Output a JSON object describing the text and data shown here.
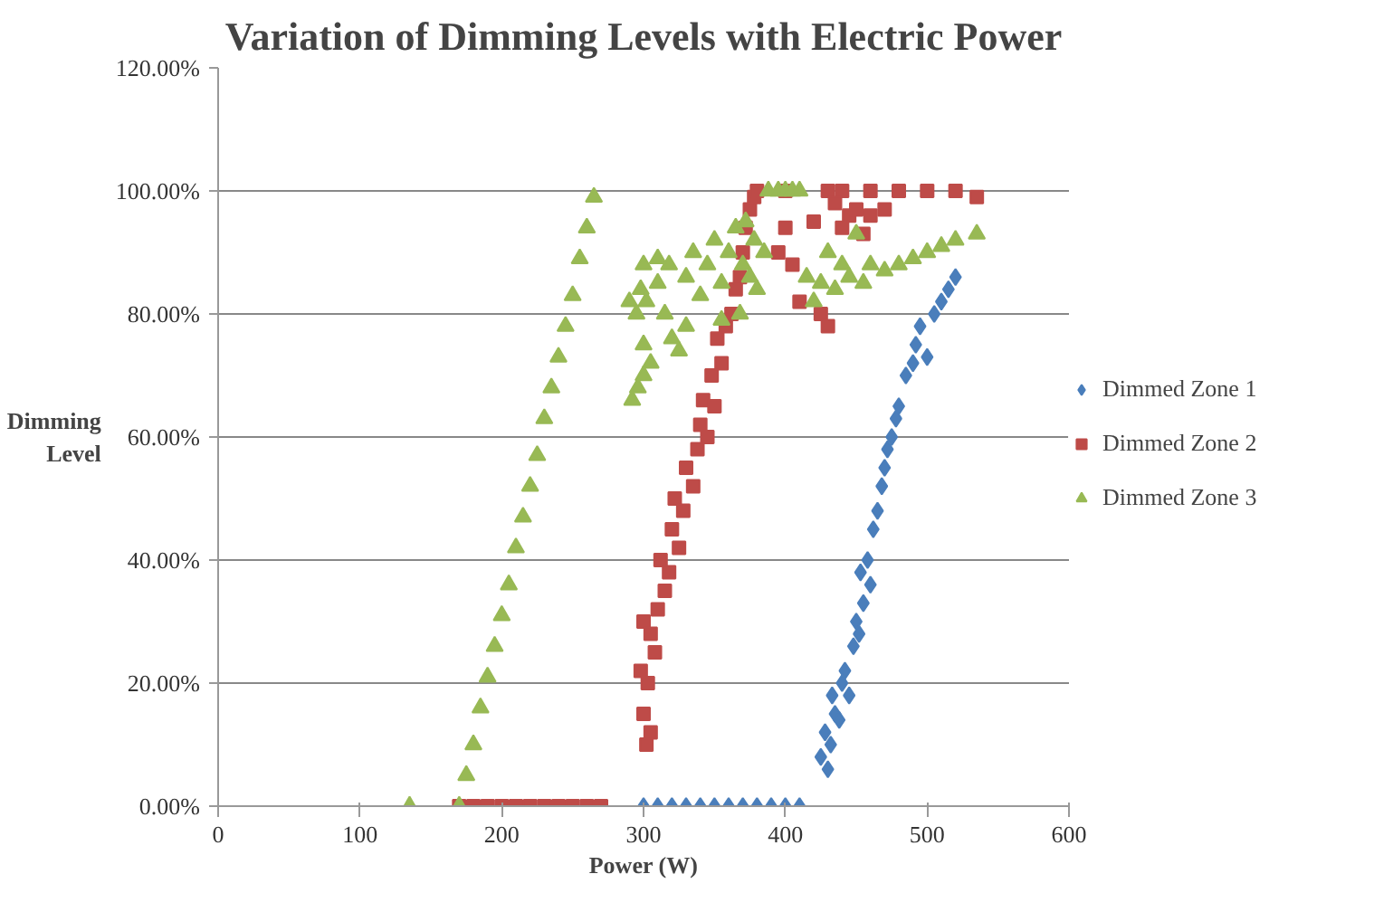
{
  "chart_data": {
    "type": "scatter",
    "title": "Variation of Dimming Levels with Electric Power",
    "xlabel": "Power (W)",
    "ylabel": "Dimming\nLevel",
    "xlim": [
      0,
      600
    ],
    "xticks": [
      0,
      100,
      200,
      300,
      400,
      500,
      600
    ],
    "ylim": [
      0,
      120
    ],
    "yticks": [
      {
        "value": 0,
        "label": "0.00%"
      },
      {
        "value": 20,
        "label": "20.00%"
      },
      {
        "value": 40,
        "label": "40.00%"
      },
      {
        "value": 60,
        "label": "60.00%"
      },
      {
        "value": 80,
        "label": "80.00%"
      },
      {
        "value": 100,
        "label": "100.00%"
      },
      {
        "value": 120,
        "label": "120.00%"
      }
    ],
    "grid": "y",
    "legend": "right",
    "series": [
      {
        "name": "Dimmed Zone 1",
        "color": "#4a7ebb",
        "marker": "diamond",
        "x": [
          300,
          310,
          320,
          330,
          340,
          350,
          360,
          370,
          380,
          390,
          400,
          410,
          425,
          428,
          430,
          432,
          435,
          433,
          438,
          440,
          442,
          445,
          448,
          450,
          452,
          455,
          453,
          458,
          460,
          462,
          465,
          468,
          470,
          472,
          475,
          478,
          480,
          485,
          490,
          492,
          495,
          500,
          505,
          510,
          515,
          520
        ],
        "values": [
          0,
          0,
          0,
          0,
          0,
          0,
          0,
          0,
          0,
          0,
          0,
          0,
          8,
          12,
          6,
          10,
          15,
          18,
          14,
          20,
          22,
          18,
          26,
          30,
          28,
          33,
          38,
          40,
          36,
          45,
          48,
          52,
          55,
          58,
          60,
          63,
          65,
          70,
          72,
          75,
          78,
          73,
          80,
          82,
          84,
          86
        ]
      },
      {
        "name": "Dimmed Zone 2",
        "color": "#be4b48",
        "marker": "square",
        "x": [
          170,
          180,
          190,
          200,
          210,
          220,
          230,
          240,
          250,
          260,
          270,
          298,
          300,
          302,
          305,
          303,
          308,
          300,
          305,
          310,
          315,
          312,
          318,
          320,
          325,
          322,
          328,
          330,
          335,
          338,
          340,
          345,
          342,
          348,
          350,
          355,
          352,
          358,
          362,
          365,
          368,
          370,
          372,
          375,
          378,
          380,
          400,
          430,
          440,
          460,
          480,
          500,
          520,
          535,
          425,
          430,
          420,
          435,
          440,
          445,
          450,
          455,
          460,
          470,
          395,
          405,
          410,
          400
        ],
        "values": [
          0,
          0,
          0,
          0,
          0,
          0,
          0,
          0,
          0,
          0,
          0,
          22,
          15,
          10,
          12,
          20,
          25,
          30,
          28,
          32,
          35,
          40,
          38,
          45,
          42,
          50,
          48,
          55,
          52,
          58,
          62,
          60,
          66,
          70,
          65,
          72,
          76,
          78,
          80,
          84,
          86,
          90,
          94,
          97,
          99,
          100,
          100,
          100,
          100,
          100,
          100,
          100,
          100,
          99,
          80,
          78,
          95,
          98,
          94,
          96,
          97,
          93,
          96,
          97,
          90,
          88,
          82,
          94
        ]
      },
      {
        "name": "Dimmed Zone 3",
        "color": "#98b954",
        "marker": "triangle",
        "x": [
          135,
          170,
          175,
          180,
          185,
          190,
          195,
          200,
          205,
          210,
          215,
          220,
          225,
          230,
          235,
          240,
          245,
          250,
          255,
          260,
          265,
          292,
          296,
          300,
          305,
          300,
          295,
          298,
          302,
          310,
          315,
          320,
          325,
          318,
          330,
          335,
          340,
          345,
          350,
          355,
          360,
          365,
          370,
          368,
          375,
          372,
          380,
          378,
          385,
          388,
          395,
          400,
          405,
          410,
          415,
          420,
          425,
          430,
          435,
          440,
          445,
          450,
          455,
          460,
          470,
          480,
          490,
          500,
          510,
          520,
          535,
          300,
          290,
          310,
          355,
          330
        ],
        "values": [
          0,
          0,
          5,
          10,
          16,
          21,
          26,
          31,
          36,
          42,
          47,
          52,
          57,
          63,
          68,
          73,
          78,
          83,
          89,
          94,
          99,
          66,
          68,
          70,
          72,
          75,
          80,
          84,
          82,
          85,
          80,
          76,
          74,
          88,
          86,
          90,
          83,
          88,
          92,
          85,
          90,
          94,
          88,
          80,
          86,
          95,
          84,
          92,
          90,
          100,
          100,
          100,
          100,
          100,
          86,
          82,
          85,
          90,
          84,
          88,
          86,
          93,
          85,
          88,
          87,
          88,
          89,
          90,
          91,
          92,
          93,
          88,
          82,
          89,
          79,
          78
        ]
      }
    ]
  }
}
